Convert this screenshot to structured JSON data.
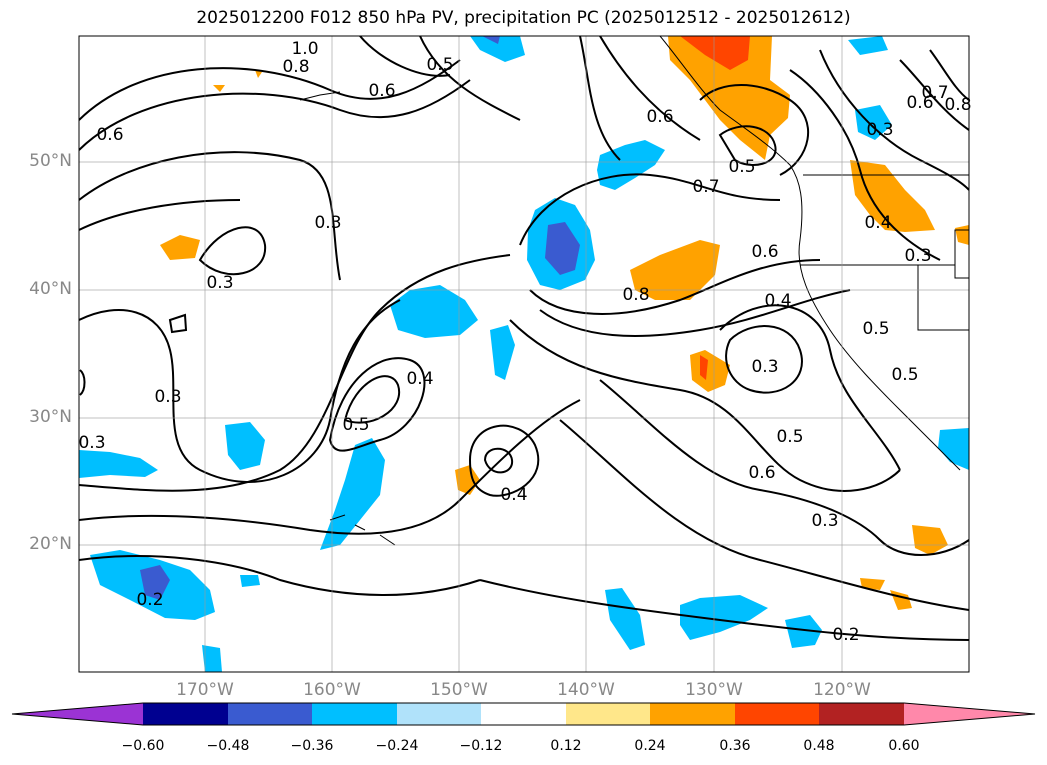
{
  "title": "2025012200 F012 850 hPa PV, precipitation PC (2025012512 - 2025012612)",
  "lat_labels": [
    "50°N",
    "40°N",
    "30°N",
    "20°N"
  ],
  "lon_labels": [
    "170°W",
    "160°W",
    "150°W",
    "140°W",
    "130°W",
    "120°W"
  ],
  "contour_labels": [
    "1.0",
    "0.8",
    "0.6",
    "0.5",
    "0.6",
    "0.3",
    "0.3",
    "0.3",
    "0.3",
    "0.4",
    "0.5",
    "0.4",
    "0.2",
    "0.6",
    "0.7",
    "0.8",
    "0.6",
    "0.4",
    "0.3",
    "0.5",
    "0.6",
    "0.3",
    "0.2",
    "0.3",
    "0.4",
    "0.3",
    "0.5",
    "0.5",
    "0.6",
    "0.5",
    "0.7",
    "0.8"
  ],
  "colorbar": {
    "ticks": [
      "−0.60",
      "−0.48",
      "−0.36",
      "−0.24",
      "−0.12",
      "0.12",
      "0.24",
      "0.36",
      "0.48",
      "0.60"
    ],
    "colors": [
      "#9b33d4",
      "#000090",
      "#3a5bd0",
      "#00bfff",
      "#b0e2fa",
      "#ffffff",
      "#ffe78a",
      "#ffa200",
      "#ff4500",
      "#b22222",
      "#ff88aa"
    ]
  }
}
